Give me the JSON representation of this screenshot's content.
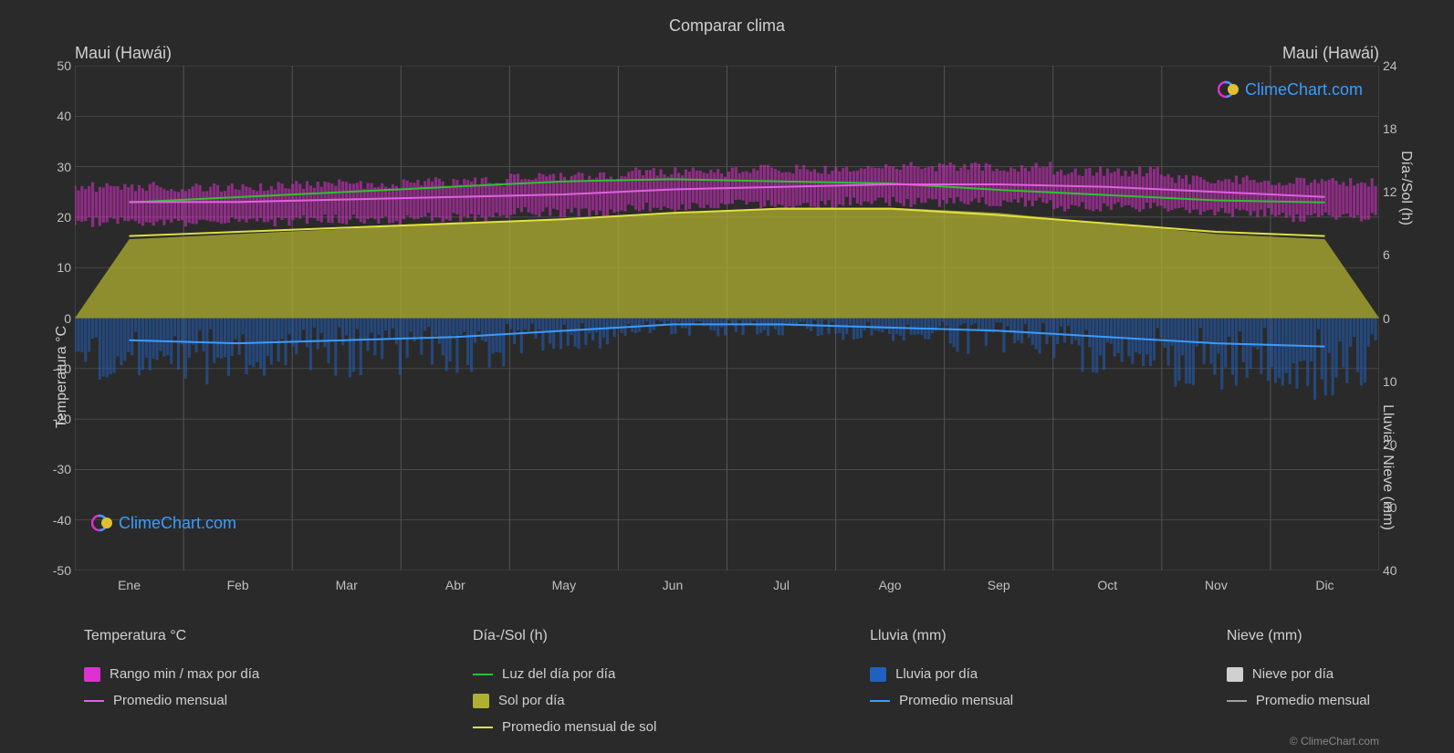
{
  "title": "Comparar clima",
  "location_left": "Maui (Hawái)",
  "location_right": "Maui (Hawái)",
  "brand": "ClimeChart.com",
  "copyright": "© ClimeChart.com",
  "y_left": {
    "label": "Temperatura °C",
    "min": -50,
    "max": 50,
    "ticks": [
      50,
      40,
      30,
      20,
      10,
      0,
      -10,
      -20,
      -30,
      -40,
      -50
    ]
  },
  "y_right_top": {
    "label": "Día-/Sol (h)",
    "ticks": [
      24,
      18,
      12,
      6,
      0
    ]
  },
  "y_right_bottom": {
    "label": "Lluvia / Nieve (mm)",
    "ticks": [
      10,
      20,
      30,
      40
    ]
  },
  "x_axis": {
    "labels": [
      "Ene",
      "Feb",
      "Mar",
      "Abr",
      "May",
      "Jun",
      "Jul",
      "Ago",
      "Sep",
      "Oct",
      "Nov",
      "Dic"
    ]
  },
  "colors": {
    "background": "#2a2a2a",
    "grid": "#555555",
    "temp_range": "#e030d0",
    "temp_avg": "#e060e0",
    "daylight": "#30c030",
    "sun_fill": "#b0b030",
    "sun_avg": "#e0e040",
    "rain_fill": "#2060c0",
    "rain_avg": "#3a9cff",
    "snow_fill": "#d0d0d0",
    "snow_avg": "#a0a0a0"
  },
  "series": {
    "temp_avg": [
      23,
      23,
      23.5,
      24,
      24.5,
      25.5,
      26,
      26.5,
      26.5,
      26,
      25,
      24
    ],
    "temp_min": [
      19,
      19,
      19.5,
      20,
      21,
      22,
      22.5,
      23,
      23,
      22,
      21,
      20
    ],
    "temp_max": [
      26,
      26,
      26.5,
      27,
      28,
      29,
      29.5,
      30,
      30,
      29,
      27.5,
      27
    ],
    "daylight_h": [
      11,
      11.5,
      12,
      12.5,
      13,
      13.2,
      13,
      12.8,
      12.2,
      11.7,
      11.2,
      11
    ],
    "sun_h": [
      7.5,
      8,
      8.5,
      9,
      9.5,
      10,
      10.5,
      10.5,
      10,
      9,
      8,
      7.5
    ],
    "sun_avg_h": [
      7.8,
      8.2,
      8.6,
      9,
      9.4,
      10,
      10.4,
      10.4,
      9.8,
      9,
      8.2,
      7.8
    ],
    "rain_mm": [
      3.5,
      4,
      3.5,
      3,
      2,
      1,
      1,
      1.5,
      2,
      3,
      4,
      4.5
    ],
    "rain_avg_mm": [
      3.5,
      4,
      3.5,
      3,
      2,
      1,
      1,
      1.5,
      2,
      3,
      4,
      4.5
    ]
  },
  "legend": {
    "cols": [
      {
        "header": "Temperatura °C",
        "items": [
          {
            "type": "swatch",
            "color": "#e030d0",
            "label": "Rango min / max por día"
          },
          {
            "type": "line",
            "color": "#e060e0",
            "label": "Promedio mensual"
          }
        ]
      },
      {
        "header": "Día-/Sol (h)",
        "items": [
          {
            "type": "line",
            "color": "#30c030",
            "label": "Luz del día por día"
          },
          {
            "type": "swatch",
            "color": "#b0b030",
            "label": "Sol por día"
          },
          {
            "type": "line",
            "color": "#e0e040",
            "label": "Promedio mensual de sol"
          }
        ]
      },
      {
        "header": "Lluvia (mm)",
        "items": [
          {
            "type": "swatch",
            "color": "#2060c0",
            "label": "Lluvia por día"
          },
          {
            "type": "line",
            "color": "#3a9cff",
            "label": "Promedio mensual"
          }
        ]
      },
      {
        "header": "Nieve (mm)",
        "items": [
          {
            "type": "swatch",
            "color": "#d0d0d0",
            "label": "Nieve por día"
          },
          {
            "type": "line",
            "color": "#a0a0a0",
            "label": "Promedio mensual"
          }
        ]
      }
    ]
  }
}
